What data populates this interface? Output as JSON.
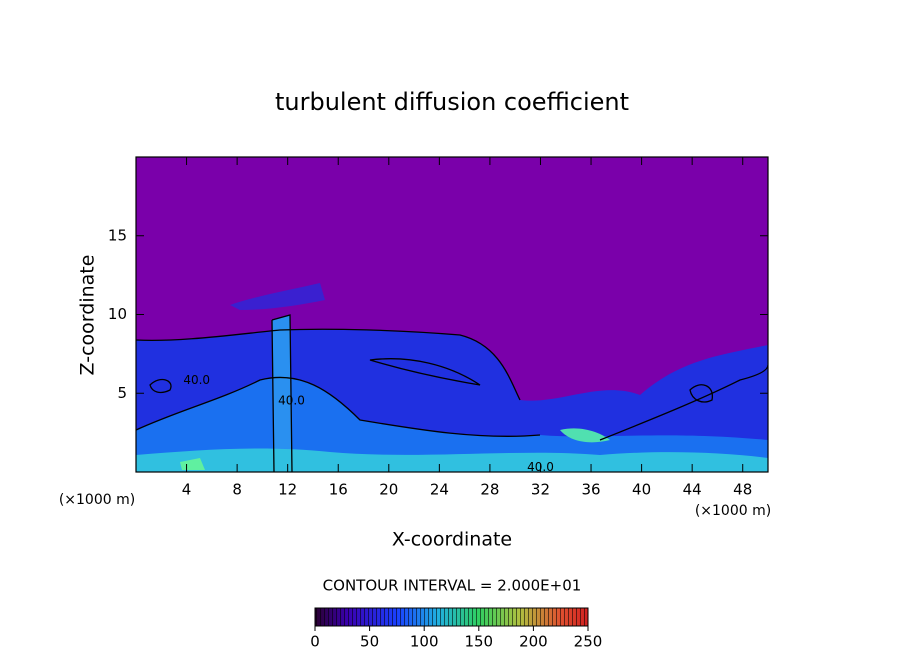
{
  "chart_data": {
    "type": "contour",
    "title": "turbulent diffusion coefficient",
    "x_label": "X-coordinate",
    "y_label": "Z-coordinate",
    "x_unit": "(×1000 m)",
    "y_unit": "(×1000 m)",
    "xlim": [
      0,
      50
    ],
    "ylim": [
      0,
      20
    ],
    "xticks": [
      4,
      8,
      12,
      16,
      20,
      24,
      28,
      32,
      36,
      40,
      44,
      48
    ],
    "yticks": [
      5,
      10,
      15
    ],
    "contour_labels": [
      {
        "text": "40.0",
        "x": 4.8,
        "y": 5.8
      },
      {
        "text": "40.0",
        "x": 12.3,
        "y": 4.5
      },
      {
        "text": "40.0",
        "x": 32.0,
        "y": 0.3
      }
    ],
    "contour_interval_label": "CONTOUR INTERVAL = 2.000E+01",
    "colorbar": {
      "lim": [
        0,
        250
      ],
      "ticks": [
        0,
        50,
        100,
        150,
        200,
        250
      ]
    }
  }
}
